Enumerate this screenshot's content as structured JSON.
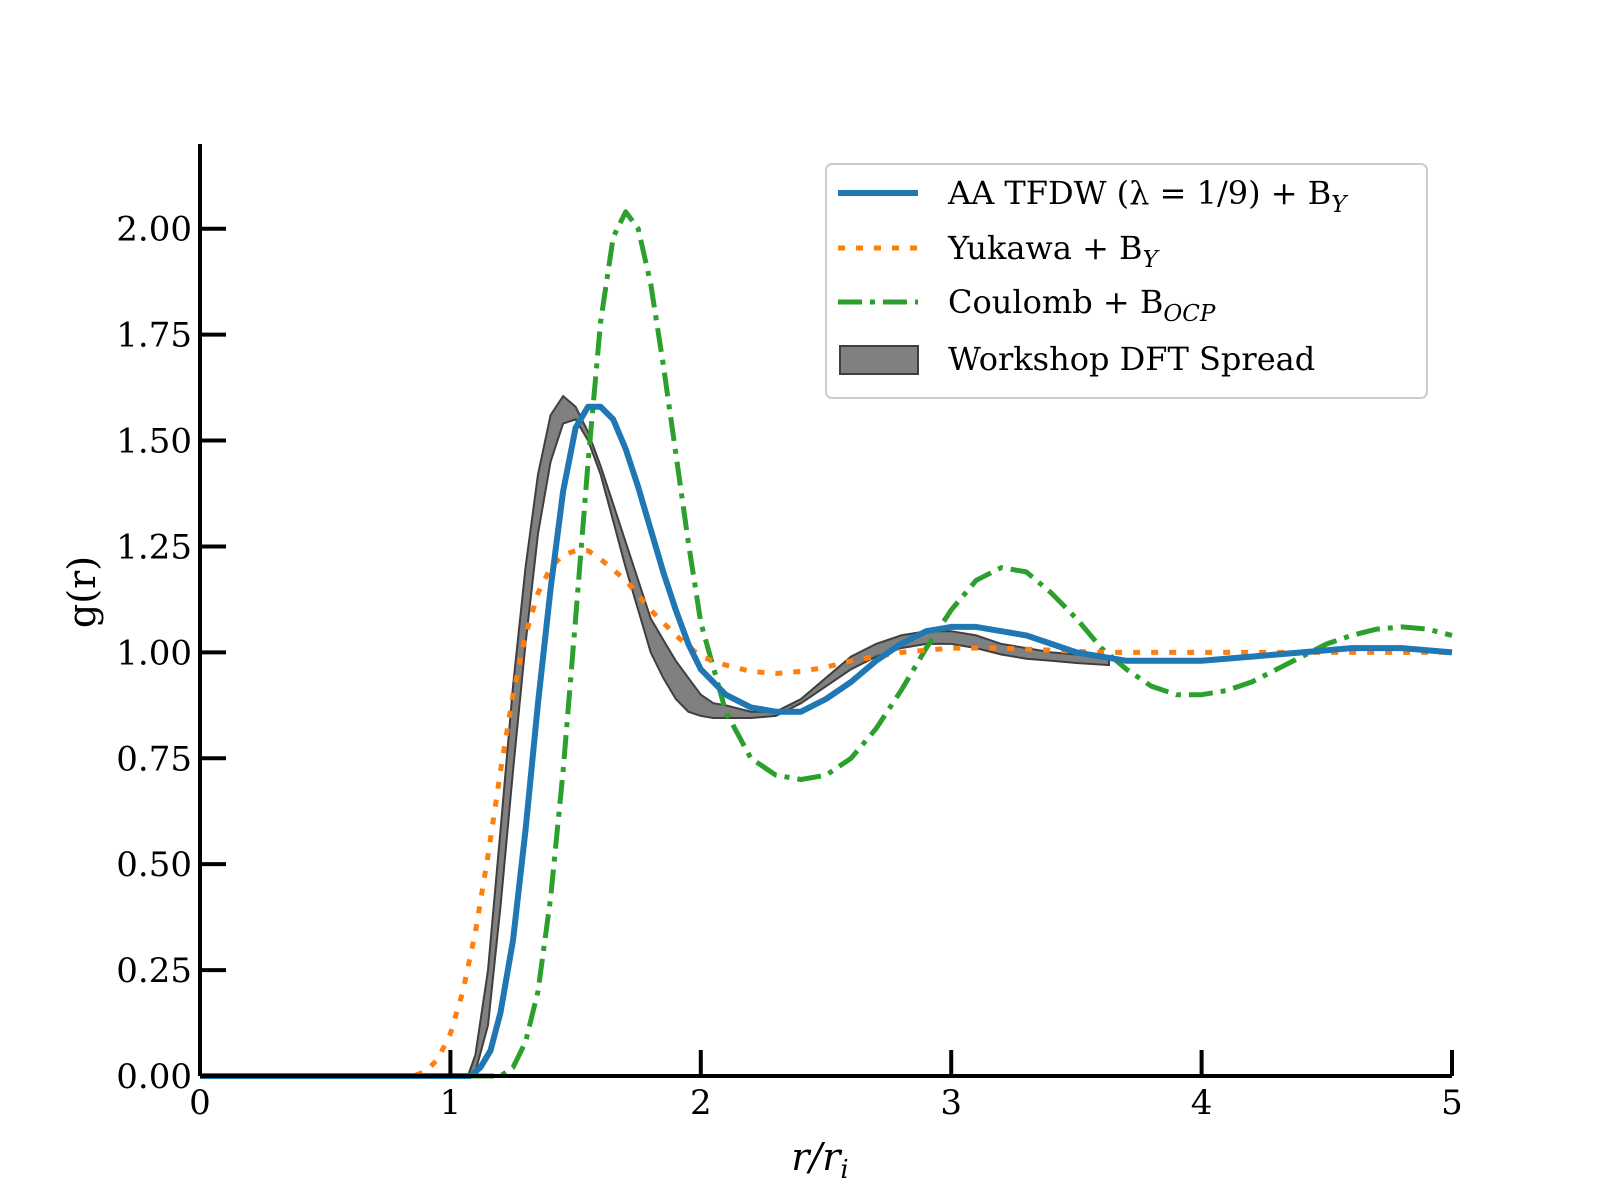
{
  "chart_data": {
    "type": "line",
    "xlabel": "r/r",
    "xlabel_sub": "i",
    "ylabel": "g(r)",
    "xlim": [
      0,
      5
    ],
    "ylim": [
      0,
      2.2
    ],
    "xticks": [
      0,
      1,
      2,
      3,
      4,
      5
    ],
    "xtick_labels": [
      "0",
      "1",
      "2",
      "3",
      "4",
      "5"
    ],
    "yticks": [
      0,
      0.25,
      0.5,
      0.75,
      1.0,
      1.25,
      1.5,
      1.75,
      2.0
    ],
    "ytick_labels": [
      "0.00",
      "0.25",
      "0.50",
      "0.75",
      "1.00",
      "1.25",
      "1.50",
      "1.75",
      "2.00"
    ],
    "grid": false,
    "legend_position": "top-right",
    "series": [
      {
        "name": "AA TFDW (λ = 1/9) + B",
        "name_sub": "Y",
        "style": "solid",
        "color": "#1f77b4",
        "x": [
          0,
          1.0,
          1.08,
          1.12,
          1.16,
          1.2,
          1.25,
          1.3,
          1.35,
          1.4,
          1.45,
          1.5,
          1.55,
          1.6,
          1.65,
          1.7,
          1.75,
          1.8,
          1.85,
          1.9,
          1.95,
          2.0,
          2.1,
          2.2,
          2.3,
          2.4,
          2.5,
          2.6,
          2.7,
          2.8,
          2.9,
          3.0,
          3.1,
          3.2,
          3.3,
          3.4,
          3.5,
          3.6,
          3.7,
          3.8,
          3.9,
          4.0,
          4.2,
          4.4,
          4.6,
          4.8,
          5.0
        ],
        "y": [
          0,
          0,
          0.0,
          0.02,
          0.06,
          0.15,
          0.32,
          0.58,
          0.88,
          1.15,
          1.38,
          1.53,
          1.58,
          1.58,
          1.55,
          1.48,
          1.39,
          1.29,
          1.19,
          1.1,
          1.02,
          0.96,
          0.9,
          0.87,
          0.86,
          0.86,
          0.89,
          0.93,
          0.98,
          1.02,
          1.05,
          1.06,
          1.06,
          1.05,
          1.04,
          1.02,
          1.0,
          0.99,
          0.98,
          0.98,
          0.98,
          0.98,
          0.99,
          1.0,
          1.01,
          1.01,
          1.0
        ]
      },
      {
        "name": "Yukawa + B",
        "name_sub": "Y",
        "style": "dotted",
        "color": "#ff7f0e",
        "x": [
          0,
          0.85,
          0.9,
          0.95,
          1.0,
          1.05,
          1.1,
          1.15,
          1.2,
          1.25,
          1.3,
          1.35,
          1.4,
          1.45,
          1.5,
          1.55,
          1.6,
          1.7,
          1.8,
          1.9,
          2.0,
          2.1,
          2.2,
          2.3,
          2.4,
          2.5,
          2.6,
          2.7,
          2.8,
          2.9,
          3.0,
          3.2,
          3.4,
          3.6,
          3.8,
          4.0,
          4.5,
          5.0
        ],
        "y": [
          0,
          0,
          0.01,
          0.04,
          0.1,
          0.2,
          0.34,
          0.52,
          0.72,
          0.9,
          1.04,
          1.14,
          1.2,
          1.23,
          1.24,
          1.24,
          1.22,
          1.17,
          1.1,
          1.04,
          0.99,
          0.97,
          0.955,
          0.95,
          0.955,
          0.965,
          0.98,
          0.99,
          1.0,
          1.005,
          1.01,
          1.01,
          1.005,
          1.0,
          1.0,
          1.0,
          1.0,
          1.0
        ]
      },
      {
        "name": "Coulomb + B",
        "name_sub": "OCP",
        "style": "dashdot",
        "color": "#2ca02c",
        "x": [
          0,
          1.15,
          1.2,
          1.25,
          1.3,
          1.35,
          1.4,
          1.45,
          1.5,
          1.55,
          1.6,
          1.65,
          1.7,
          1.75,
          1.8,
          1.85,
          1.9,
          1.95,
          2.0,
          2.1,
          2.2,
          2.3,
          2.4,
          2.5,
          2.6,
          2.7,
          2.8,
          2.9,
          3.0,
          3.1,
          3.2,
          3.3,
          3.4,
          3.5,
          3.6,
          3.7,
          3.8,
          3.9,
          4.0,
          4.1,
          4.2,
          4.3,
          4.4,
          4.5,
          4.6,
          4.7,
          4.8,
          4.9,
          5.0
        ],
        "y": [
          0,
          0,
          0.0,
          0.02,
          0.08,
          0.2,
          0.42,
          0.72,
          1.08,
          1.45,
          1.78,
          1.98,
          2.04,
          2.0,
          1.87,
          1.68,
          1.47,
          1.26,
          1.07,
          0.86,
          0.75,
          0.71,
          0.7,
          0.71,
          0.75,
          0.82,
          0.91,
          1.01,
          1.1,
          1.17,
          1.2,
          1.19,
          1.14,
          1.08,
          1.01,
          0.96,
          0.92,
          0.9,
          0.9,
          0.91,
          0.93,
          0.96,
          0.99,
          1.02,
          1.04,
          1.055,
          1.06,
          1.055,
          1.04
        ]
      }
    ],
    "band": {
      "name": "Workshop DFT Spread",
      "color": "#808080",
      "x": [
        1.07,
        1.1,
        1.15,
        1.2,
        1.25,
        1.3,
        1.35,
        1.4,
        1.45,
        1.5,
        1.55,
        1.6,
        1.65,
        1.7,
        1.75,
        1.8,
        1.85,
        1.9,
        1.95,
        2.0,
        2.05,
        2.1,
        2.2,
        2.3,
        2.4,
        2.5,
        2.6,
        2.7,
        2.8,
        2.9,
        3.0,
        3.1,
        3.2,
        3.3,
        3.4,
        3.5,
        3.63
      ],
      "upper": [
        0.0,
        0.05,
        0.25,
        0.58,
        0.92,
        1.2,
        1.42,
        1.56,
        1.605,
        1.58,
        1.52,
        1.44,
        1.35,
        1.26,
        1.17,
        1.08,
        1.03,
        0.98,
        0.94,
        0.9,
        0.88,
        0.875,
        0.86,
        0.86,
        0.89,
        0.94,
        0.99,
        1.02,
        1.04,
        1.05,
        1.05,
        1.04,
        1.02,
        1.01,
        1.0,
        0.995,
        0.99
      ],
      "lower": [
        0.0,
        0.01,
        0.12,
        0.4,
        0.72,
        1.02,
        1.28,
        1.45,
        1.54,
        1.55,
        1.5,
        1.42,
        1.31,
        1.2,
        1.1,
        1.0,
        0.94,
        0.89,
        0.86,
        0.85,
        0.845,
        0.845,
        0.845,
        0.85,
        0.88,
        0.92,
        0.96,
        0.99,
        1.01,
        1.02,
        1.02,
        1.01,
        0.995,
        0.985,
        0.98,
        0.975,
        0.97
      ]
    }
  }
}
